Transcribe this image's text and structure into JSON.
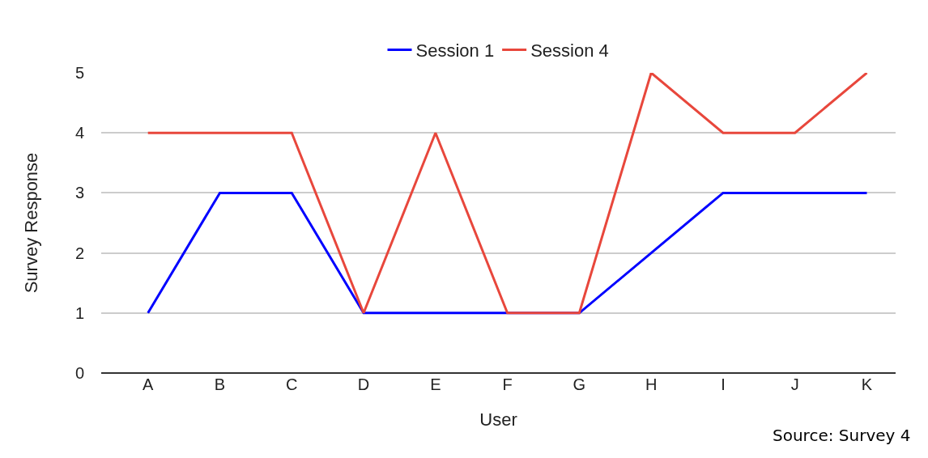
{
  "chart_data": {
    "type": "line",
    "xlabel": "User",
    "ylabel": "Survey Response",
    "categories": [
      "A",
      "B",
      "C",
      "D",
      "E",
      "F",
      "G",
      "H",
      "I",
      "J",
      "K"
    ],
    "series": [
      {
        "name": "Session 1",
        "color": "#0000ff",
        "values": [
          1,
          3,
          3,
          1,
          1,
          1,
          1,
          2,
          3,
          3,
          3
        ]
      },
      {
        "name": "Session 4",
        "color": "#e8473c",
        "values": [
          4,
          4,
          4,
          1,
          4,
          1,
          1,
          5,
          4,
          4,
          5
        ]
      }
    ],
    "ylim": [
      0,
      5
    ],
    "yticks": [
      0,
      1,
      2,
      3,
      4,
      5
    ],
    "grid": "y",
    "legend": "top",
    "marker": "none",
    "line_style": "solid",
    "annotations": [
      "Source: Survey 4"
    ]
  }
}
